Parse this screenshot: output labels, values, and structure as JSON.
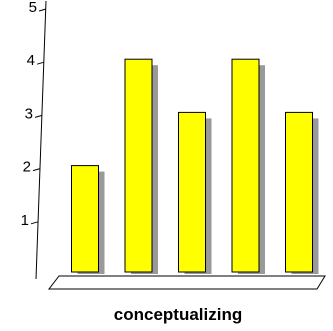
{
  "chart_data": {
    "type": "bar",
    "categories": [
      "",
      "",
      "",
      "",
      ""
    ],
    "values": [
      2,
      4,
      3,
      4,
      3
    ],
    "xlabel": "conceptualizing",
    "ylabel": "",
    "ylim": [
      0,
      5
    ],
    "yticks": [
      "1",
      "2",
      "3",
      "4",
      "5"
    ],
    "grid": false,
    "legend": "none",
    "colors": {
      "bar": "#ffff00",
      "shadow": "#999999",
      "axis": "#000000"
    }
  }
}
